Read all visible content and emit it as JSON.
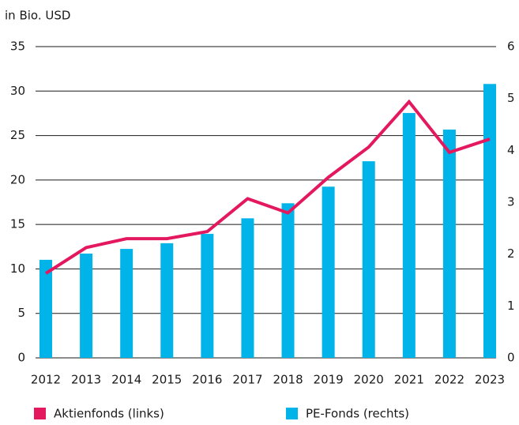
{
  "chart_data": {
    "type": "bar",
    "y_label": "in Bio. USD",
    "categories": [
      "2012",
      "2013",
      "2014",
      "2015",
      "2016",
      "2017",
      "2018",
      "2019",
      "2020",
      "2021",
      "2022",
      "2023"
    ],
    "series": [
      {
        "name": "Aktienfonds (links)",
        "type": "line",
        "color": "#e4185f",
        "values": [
          9.5,
          12.4,
          13.4,
          13.4,
          14.2,
          17.9,
          16.3,
          20.3,
          23.7,
          28.8,
          23.1,
          24.6
        ]
      },
      {
        "name": "PE-Fonds (rechts)",
        "type": "bar",
        "axis": "y2",
        "color": "#00b4ea",
        "values": [
          1.89,
          2.01,
          2.1,
          2.21,
          2.39,
          2.69,
          2.98,
          3.3,
          3.79,
          4.72,
          4.4,
          5.28
        ]
      }
    ],
    "ylim": [
      0,
      35
    ],
    "yticks": [
      0,
      5,
      10,
      15,
      20,
      25,
      30,
      35
    ],
    "y2lim": [
      0,
      6
    ],
    "y2ticks": [
      0,
      1,
      2,
      3,
      4,
      5,
      6
    ],
    "grid": true,
    "legend": "bottom"
  }
}
